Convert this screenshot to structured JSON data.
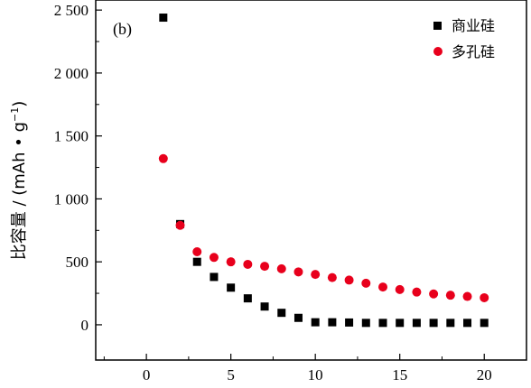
{
  "chart_data": {
    "type": "scatter",
    "panel_label": "(b)",
    "ylabel": "比容量 / (mAh • g",
    "ylabel_sup": "−1",
    "ylabel_close": ")",
    "xlim": [
      -3,
      22.5
    ],
    "ylim": [
      -280,
      2580
    ],
    "x_ticks": [
      0,
      5,
      10,
      15,
      20
    ],
    "x_tick_labels": [
      "0",
      "5",
      "10",
      "15",
      "20"
    ],
    "y_ticks": [
      0,
      500,
      1000,
      1500,
      2000,
      2500
    ],
    "y_tick_labels": [
      "0",
      "500",
      "1 000",
      "1 500",
      "2 000",
      "2 500"
    ],
    "legend_position": "top-right",
    "grid": false,
    "series": [
      {
        "name": "商业硅",
        "marker": "square",
        "color": "#000000",
        "x": [
          1,
          2,
          3,
          4,
          5,
          6,
          7,
          8,
          9,
          10,
          11,
          12,
          13,
          14,
          15,
          16,
          17,
          18,
          19,
          20
        ],
        "y": [
          2440,
          800,
          500,
          380,
          295,
          210,
          145,
          95,
          55,
          20,
          20,
          18,
          15,
          15,
          15,
          15,
          15,
          15,
          15,
          15
        ]
      },
      {
        "name": "多孔硅",
        "marker": "circle",
        "color": "#e8001c",
        "x": [
          1,
          2,
          3,
          4,
          5,
          6,
          7,
          8,
          9,
          10,
          11,
          12,
          13,
          14,
          15,
          16,
          17,
          18,
          19,
          20
        ],
        "y": [
          1320,
          790,
          580,
          535,
          500,
          480,
          465,
          445,
          420,
          400,
          375,
          355,
          330,
          300,
          280,
          260,
          245,
          235,
          225,
          215
        ]
      }
    ]
  }
}
